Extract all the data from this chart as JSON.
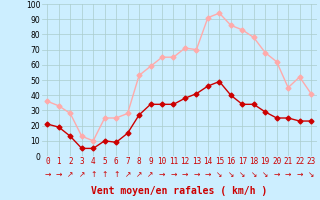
{
  "x": [
    0,
    1,
    2,
    3,
    4,
    5,
    6,
    7,
    8,
    9,
    10,
    11,
    12,
    13,
    14,
    15,
    16,
    17,
    18,
    19,
    20,
    21,
    22,
    23
  ],
  "wind_avg": [
    21,
    19,
    13,
    5,
    5,
    10,
    9,
    15,
    27,
    34,
    34,
    34,
    38,
    41,
    46,
    49,
    40,
    34,
    34,
    29,
    25,
    25,
    23,
    23
  ],
  "wind_gust": [
    36,
    33,
    28,
    13,
    10,
    25,
    25,
    28,
    53,
    59,
    65,
    65,
    71,
    70,
    91,
    94,
    86,
    83,
    78,
    68,
    62,
    45,
    52,
    41
  ],
  "avg_color": "#cc0000",
  "gust_color": "#ffaaaa",
  "bg_color": "#cceeff",
  "grid_color": "#aacccc",
  "xlabel": "Vent moyen/en rafales ( km/h )",
  "xlabel_color": "#cc0000",
  "ylim": [
    0,
    100
  ],
  "yticks": [
    0,
    10,
    20,
    30,
    40,
    50,
    60,
    70,
    80,
    90,
    100
  ],
  "xticks": [
    0,
    1,
    2,
    3,
    4,
    5,
    6,
    7,
    8,
    9,
    10,
    11,
    12,
    13,
    14,
    15,
    16,
    17,
    18,
    19,
    20,
    21,
    22,
    23
  ],
  "marker": "D",
  "markersize": 2.5,
  "linewidth": 1.0,
  "tick_fontsize": 5.5,
  "xlabel_fontsize": 7.0,
  "arrow_fontsize": 5.5
}
